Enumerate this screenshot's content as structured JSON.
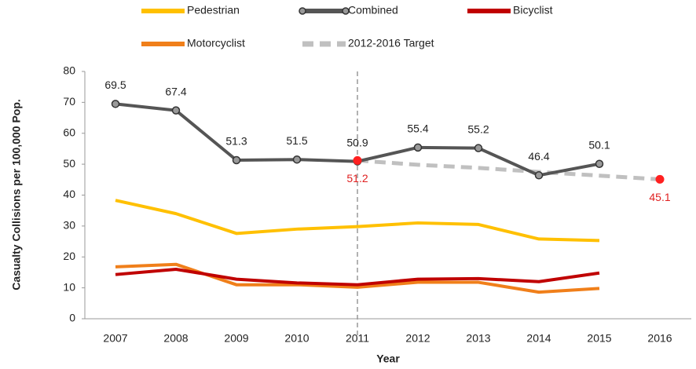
{
  "chart_data": {
    "type": "line",
    "categories": [
      "2007",
      "2008",
      "2009",
      "2010",
      "2011",
      "2012",
      "2013",
      "2014",
      "2015",
      "2016"
    ],
    "y_label": "Casualty Collisions per 100,000 Pop.",
    "x_label": "Year",
    "ylim": [
      0,
      80
    ],
    "yticks": [
      0,
      10,
      20,
      30,
      40,
      50,
      60,
      70,
      80
    ],
    "grid": false,
    "legend": "top",
    "series": [
      {
        "name": "Pedestrian",
        "color": "#ffc000",
        "values": [
          38.3,
          34,
          27.6,
          29,
          29.8,
          31,
          30.5,
          25.8,
          25.3,
          null
        ]
      },
      {
        "name": "Combined",
        "color": "#555555",
        "values": [
          69.5,
          67.4,
          51.3,
          51.5,
          50.9,
          55.4,
          55.2,
          46.4,
          50.1,
          null
        ]
      },
      {
        "name": "Bicyclist",
        "color": "#c00000",
        "values": [
          14.3,
          16,
          12.8,
          11.6,
          11,
          12.8,
          13,
          12,
          14.8,
          null
        ]
      },
      {
        "name": "Motorcyclist",
        "color": "#f07f1a",
        "values": [
          16.8,
          17.6,
          11,
          11,
          10.2,
          11.8,
          11.8,
          8.6,
          9.8,
          null
        ]
      },
      {
        "name": "2012-2016 Target",
        "color": "#c0c0c0",
        "values": [
          null,
          null,
          null,
          null,
          51.2,
          49.8,
          48.8,
          47.5,
          46.3,
          45.1
        ]
      }
    ]
  }
}
